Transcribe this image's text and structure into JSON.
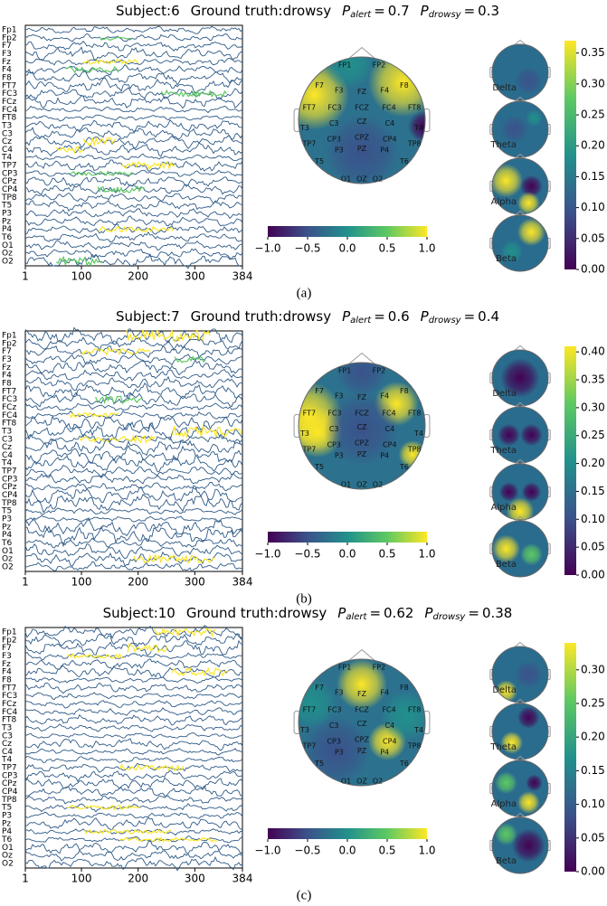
{
  "channels": [
    "Fp1",
    "Fp2",
    "F7",
    "F3",
    "Fz",
    "F4",
    "F8",
    "FT7",
    "FC3",
    "FCz",
    "FC4",
    "FT8",
    "T3",
    "C3",
    "Cz",
    "C4",
    "T4",
    "TP7",
    "CP3",
    "CPz",
    "CP4",
    "TP8",
    "T5",
    "P3",
    "Pz",
    "P4",
    "T6",
    "O1",
    "Oz",
    "O2"
  ],
  "electrodes": [
    "FP1",
    "FP2",
    "F7",
    "F3",
    "FZ",
    "F4",
    "F8",
    "FT7",
    "FC3",
    "FCZ",
    "FC4",
    "FT8",
    "T3",
    "C3",
    "CZ",
    "C4",
    "T4",
    "TP7",
    "CP3",
    "CPZ",
    "CP4",
    "TP8",
    "T5",
    "P3",
    "PZ",
    "P4",
    "T6",
    "O1",
    "OZ",
    "O2"
  ],
  "bands": [
    "Delta",
    "Theta",
    "Alpha",
    "Beta"
  ],
  "eeg_xlim": [
    1,
    384
  ],
  "eeg_xticks": [
    1,
    100,
    200,
    300,
    384
  ],
  "main_cbar": {
    "lim": [
      -1,
      1
    ],
    "ticks": [
      {
        "value": -1,
        "label": "−1.0"
      },
      {
        "value": -0.5,
        "label": "−0.5"
      },
      {
        "value": 0,
        "label": "0.0"
      },
      {
        "value": 0.5,
        "label": "0.5"
      },
      {
        "value": 1,
        "label": "1.0"
      }
    ]
  },
  "p_symbol": "P",
  "alert_subscript": "alert",
  "drowsy_subscript": "drowsy",
  "equals": "=",
  "panels": [
    {
      "label": "(a)",
      "subject": "Subject:6",
      "ground_truth": "Ground truth:drowsy",
      "p_alert": 0.7,
      "p_drowsy": 0.3,
      "band_cbar": {
        "lim": [
          0,
          0.37
        ],
        "ticks": [
          {
            "value": 0,
            "label": "0.00"
          },
          0.05,
          {
            "value": 0.1,
            "label": "0.10"
          },
          0.15,
          {
            "value": 0.2,
            "label": "0.20"
          },
          0.25,
          {
            "value": 0.3,
            "label": "0.30"
          },
          0.35
        ]
      }
    },
    {
      "label": "(b)",
      "subject": "Subject:7",
      "ground_truth": "Ground truth:drowsy",
      "p_alert": 0.6,
      "p_drowsy": 0.4,
      "band_cbar": {
        "lim": [
          0,
          0.41
        ],
        "ticks": [
          {
            "value": 0,
            "label": "0.00"
          },
          0.05,
          {
            "value": 0.1,
            "label": "0.10"
          },
          0.15,
          {
            "value": 0.2,
            "label": "0.20"
          },
          0.25,
          {
            "value": 0.3,
            "label": "0.30"
          },
          0.35,
          {
            "value": 0.4,
            "label": "0.40"
          }
        ]
      }
    },
    {
      "label": "(c)",
      "subject": "Subject:10",
      "ground_truth": "Ground truth:drowsy",
      "p_alert": 0.62,
      "p_drowsy": 0.38,
      "band_cbar": {
        "lim": [
          0,
          0.34
        ],
        "ticks": [
          {
            "value": 0,
            "label": "0.00"
          },
          0.05,
          {
            "value": 0.1,
            "label": "0.10"
          },
          0.15,
          {
            "value": 0.2,
            "label": "0.20"
          },
          0.25,
          {
            "value": 0.3,
            "label": "0.30"
          }
        ]
      }
    }
  ]
}
